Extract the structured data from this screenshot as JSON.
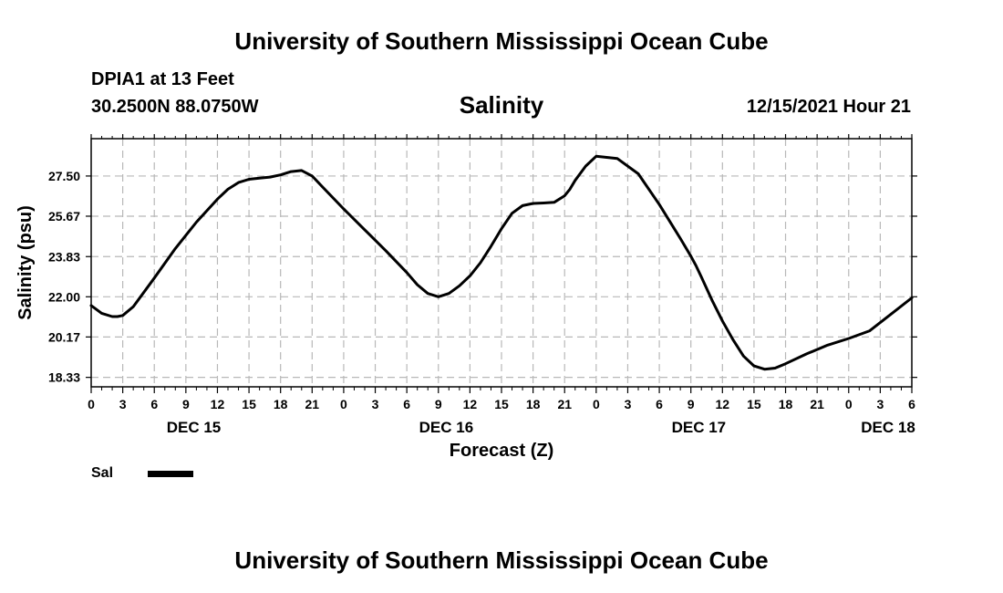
{
  "header": {
    "title": "University of Southern Mississippi Ocean Cube",
    "station": "DPIA1 at 13 Feet",
    "coords": "30.2500N  88.0750W",
    "parameter": "Salinity",
    "valid_time": "12/15/2021 Hour 21"
  },
  "footer": {
    "title": "University of Southern Mississippi Ocean Cube"
  },
  "legend": {
    "label": "Sal",
    "color": "#000000"
  },
  "chart_data": {
    "type": "line",
    "title": "Salinity",
    "xlabel": "Forecast (Z)",
    "ylabel": "Salinity (psu)",
    "x_unit": "hours from Dec 15 00Z",
    "xlim": [
      0,
      78
    ],
    "ylim": [
      17.9,
      29.2
    ],
    "grid": true,
    "legend_position": "bottom-left",
    "x_tick_labels": [
      "0",
      "3",
      "6",
      "9",
      "12",
      "15",
      "18",
      "21",
      "0",
      "3",
      "6",
      "9",
      "12",
      "15",
      "18",
      "21",
      "0",
      "3",
      "6",
      "9",
      "12",
      "15",
      "18",
      "21",
      "0",
      "3",
      "6"
    ],
    "y_ticks": [
      18.33,
      20.17,
      22.0,
      23.83,
      25.67,
      27.5
    ],
    "y_tick_labels": [
      "18.33",
      "20.17",
      "22.00",
      "23.83",
      "25.67",
      "27.50"
    ],
    "day_labels": [
      {
        "text": "DEC 15",
        "hour": 9.75
      },
      {
        "text": "DEC 16",
        "hour": 33.75
      },
      {
        "text": "DEC 17",
        "hour": 57.75
      },
      {
        "text": "DEC 18",
        "hour": 75.75
      }
    ],
    "series": [
      {
        "name": "Sal",
        "color": "#000000",
        "x": [
          0,
          1,
          2,
          2.5,
          3,
          4,
          6,
          8,
          10,
          12,
          13,
          14,
          15,
          16,
          17,
          18,
          19,
          20,
          21,
          22,
          24,
          26,
          28,
          30,
          31,
          32,
          33,
          34,
          35,
          36,
          37,
          38,
          39,
          40,
          41,
          42,
          43,
          44,
          45,
          45.5,
          46,
          47,
          48,
          50,
          52,
          54,
          56,
          57,
          57.5,
          58,
          59,
          60,
          61,
          62,
          63,
          64,
          65,
          66,
          68,
          70,
          72,
          74,
          76,
          78
        ],
        "y": [
          21.6,
          21.25,
          21.1,
          21.1,
          21.15,
          21.55,
          22.85,
          24.2,
          25.4,
          26.45,
          26.9,
          27.2,
          27.35,
          27.4,
          27.45,
          27.55,
          27.7,
          27.75,
          27.5,
          27.0,
          26.0,
          25.05,
          24.1,
          23.1,
          22.55,
          22.15,
          22.0,
          22.15,
          22.5,
          22.95,
          23.55,
          24.3,
          25.1,
          25.8,
          26.15,
          26.25,
          26.27,
          26.3,
          26.6,
          26.9,
          27.3,
          27.95,
          28.4,
          28.3,
          27.6,
          26.2,
          24.65,
          23.85,
          23.4,
          22.9,
          21.85,
          20.9,
          20.05,
          19.3,
          18.85,
          18.7,
          18.75,
          18.95,
          19.4,
          19.8,
          20.1,
          20.45,
          21.2,
          21.95
        ]
      }
    ]
  }
}
